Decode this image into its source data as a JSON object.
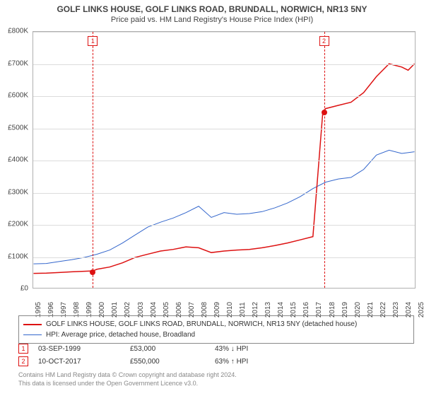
{
  "title_main": "GOLF LINKS HOUSE, GOLF LINKS ROAD, BRUNDALL, NORWICH, NR13 5NY",
  "title_sub": "Price paid vs. HM Land Registry's House Price Index (HPI)",
  "colors": {
    "series_price": "#dd1111",
    "series_hpi": "#3366cc",
    "grid": "#dcdcdc",
    "axis": "#b0b0b0",
    "text": "#444444",
    "footer": "#888888",
    "bg": "#ffffff"
  },
  "chart": {
    "type": "line",
    "x_start_year": 1995,
    "x_end_year": 2025,
    "x_ticks": [
      1995,
      1996,
      1997,
      1998,
      1999,
      2000,
      2001,
      2002,
      2003,
      2004,
      2005,
      2006,
      2007,
      2008,
      2009,
      2010,
      2011,
      2012,
      2013,
      2014,
      2015,
      2016,
      2017,
      2018,
      2019,
      2020,
      2021,
      2022,
      2023,
      2024,
      2025
    ],
    "y_min": 0,
    "y_max": 800000,
    "y_tick_step": 100000,
    "y_tick_labels": [
      "£0",
      "£100K",
      "£200K",
      "£300K",
      "£400K",
      "£500K",
      "£600K",
      "£700K",
      "£800K"
    ],
    "series_price": {
      "label": "GOLF LINKS HOUSE, GOLF LINKS ROAD, BRUNDALL, NORWICH, NR13 5NY (detached house)",
      "color": "#dd1111",
      "line_width": 1.5,
      "points": [
        [
          1995,
          45000
        ],
        [
          1996,
          46000
        ],
        [
          1997,
          48000
        ],
        [
          1998,
          50000
        ],
        [
          1999.67,
          53000
        ],
        [
          2000,
          58000
        ],
        [
          2001,
          65000
        ],
        [
          2002,
          78000
        ],
        [
          2003,
          95000
        ],
        [
          2004,
          105000
        ],
        [
          2005,
          115000
        ],
        [
          2006,
          120000
        ],
        [
          2007,
          128000
        ],
        [
          2008,
          125000
        ],
        [
          2009,
          110000
        ],
        [
          2010,
          115000
        ],
        [
          2011,
          118000
        ],
        [
          2012,
          120000
        ],
        [
          2013,
          125000
        ],
        [
          2014,
          132000
        ],
        [
          2015,
          140000
        ],
        [
          2016,
          150000
        ],
        [
          2017,
          160000
        ],
        [
          2017.78,
          550000
        ],
        [
          2018,
          560000
        ],
        [
          2019,
          570000
        ],
        [
          2020,
          580000
        ],
        [
          2021,
          610000
        ],
        [
          2022,
          660000
        ],
        [
          2023,
          700000
        ],
        [
          2024,
          690000
        ],
        [
          2024.5,
          680000
        ],
        [
          2025,
          700000
        ]
      ]
    },
    "series_hpi": {
      "label": "HPI: Average price, detached house, Broadland",
      "color": "#3366cc",
      "line_width": 1,
      "points": [
        [
          1995,
          75000
        ],
        [
          1996,
          76000
        ],
        [
          1997,
          82000
        ],
        [
          1998,
          88000
        ],
        [
          1999,
          95000
        ],
        [
          2000,
          105000
        ],
        [
          2001,
          118000
        ],
        [
          2002,
          140000
        ],
        [
          2003,
          165000
        ],
        [
          2004,
          190000
        ],
        [
          2005,
          205000
        ],
        [
          2006,
          218000
        ],
        [
          2007,
          235000
        ],
        [
          2008,
          255000
        ],
        [
          2009,
          220000
        ],
        [
          2010,
          235000
        ],
        [
          2011,
          230000
        ],
        [
          2012,
          232000
        ],
        [
          2013,
          238000
        ],
        [
          2014,
          250000
        ],
        [
          2015,
          265000
        ],
        [
          2016,
          285000
        ],
        [
          2017,
          310000
        ],
        [
          2018,
          330000
        ],
        [
          2019,
          340000
        ],
        [
          2020,
          345000
        ],
        [
          2021,
          370000
        ],
        [
          2022,
          415000
        ],
        [
          2023,
          430000
        ],
        [
          2024,
          420000
        ],
        [
          2025,
          425000
        ]
      ]
    },
    "events": [
      {
        "n": "1",
        "year": 1999.67,
        "color": "#dd1111"
      },
      {
        "n": "2",
        "year": 2017.78,
        "color": "#dd1111"
      }
    ],
    "dots": [
      {
        "year": 1999.67,
        "value": 53000,
        "color": "#dd1111"
      },
      {
        "year": 2017.78,
        "value": 550000,
        "color": "#dd1111"
      }
    ]
  },
  "legend": [
    {
      "color": "#dd1111",
      "width": 2,
      "label": "GOLF LINKS HOUSE, GOLF LINKS ROAD, BRUNDALL, NORWICH, NR13 5NY (detached house)"
    },
    {
      "color": "#3366cc",
      "width": 1,
      "label": "HPI: Average price, detached house, Broadland"
    }
  ],
  "transactions": [
    {
      "n": "1",
      "color": "#dd1111",
      "date": "03-SEP-1999",
      "price": "£53,000",
      "pct": "43% ↓ HPI"
    },
    {
      "n": "2",
      "color": "#dd1111",
      "date": "10-OCT-2017",
      "price": "£550,000",
      "pct": "63% ↑ HPI"
    }
  ],
  "footer_line1": "Contains HM Land Registry data © Crown copyright and database right 2024.",
  "footer_line2": "This data is licensed under the Open Government Licence v3.0."
}
